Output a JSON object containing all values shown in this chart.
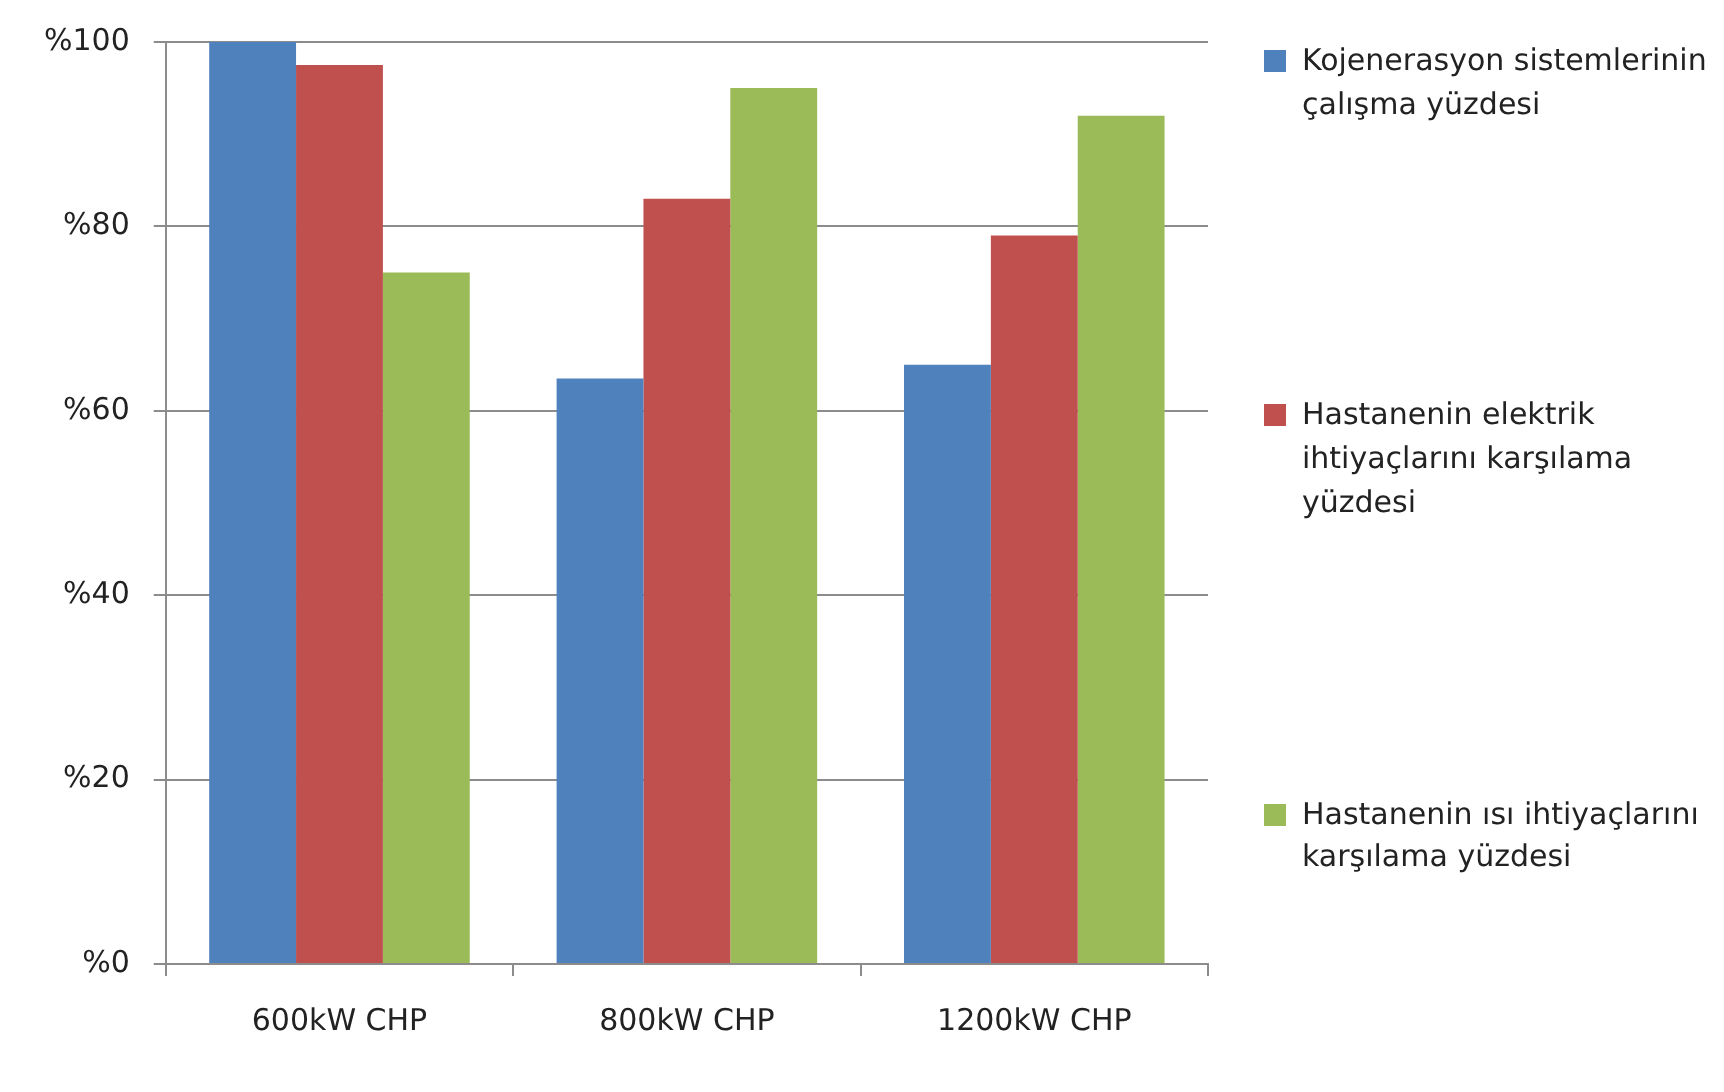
{
  "chart_data": {
    "type": "bar",
    "categories": [
      "600kW CHP",
      "800kW CHP",
      "1200kW CHP"
    ],
    "series": [
      {
        "name": "Kojenerasyon sistemlerinin çalışma yüzdesi",
        "color": "#4f81bd",
        "values": [
          100,
          63.5,
          65
        ]
      },
      {
        "name": "Hastanenin elektrik ihtiyaçlarını karşılama yüzdesi",
        "color": "#c0504d",
        "values": [
          97.5,
          83,
          79
        ]
      },
      {
        "name": "Hastanenin ısı ihtiyaçlarını karşılama yüzdesi",
        "color": "#9bbb59",
        "values": [
          75,
          95,
          92
        ]
      }
    ],
    "ylim": [
      0,
      100
    ],
    "yticks": [
      {
        "value": 0,
        "label": "%0"
      },
      {
        "value": 20,
        "label": "%20"
      },
      {
        "value": 40,
        "label": "%40"
      },
      {
        "value": 60,
        "label": "%60"
      },
      {
        "value": 80,
        "label": "%80"
      },
      {
        "value": 100,
        "label": "%100"
      }
    ],
    "grid": "y",
    "legend": "right"
  }
}
